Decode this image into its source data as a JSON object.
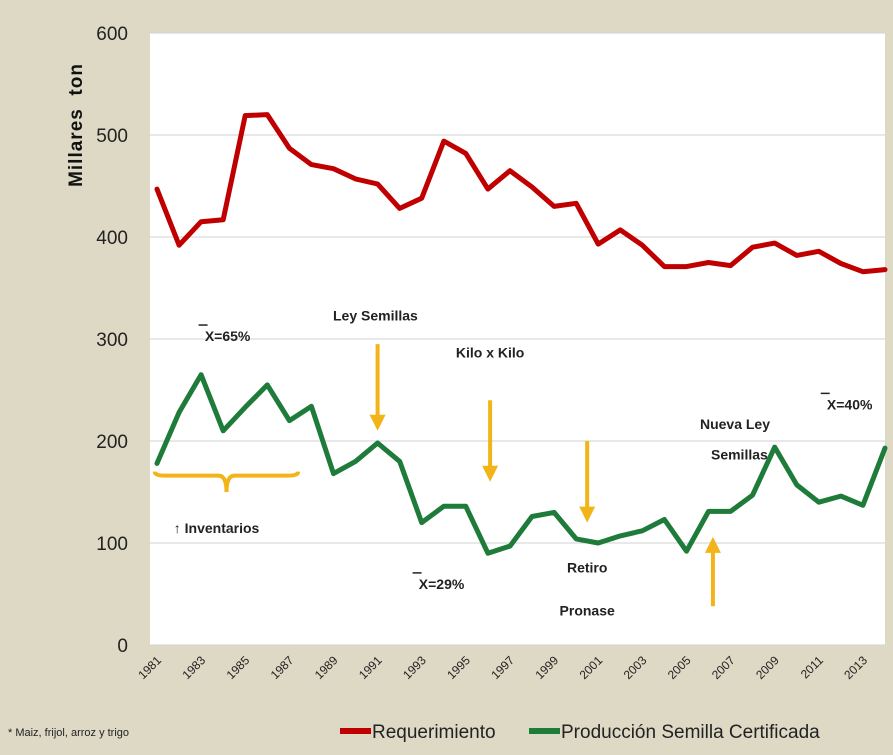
{
  "chart_data": {
    "type": "line",
    "title": "",
    "xlabel": "",
    "ylabel": "Millares  ton",
    "ylim": [
      0,
      600
    ],
    "yticks": [
      0,
      100,
      200,
      300,
      400,
      500,
      600
    ],
    "grid": true,
    "legend_placement": "bottom",
    "x": [
      1981,
      1982,
      1983,
      1984,
      1985,
      1986,
      1987,
      1988,
      1989,
      1990,
      1991,
      1992,
      1993,
      1994,
      1995,
      1996,
      1997,
      1998,
      1999,
      2000,
      2001,
      2002,
      2003,
      2004,
      2005,
      2006,
      2007,
      2008,
      2009,
      2010,
      2011,
      2012,
      2013,
      2014
    ],
    "xtick_labels": [
      "1981",
      "1983",
      "1985",
      "1987",
      "1989",
      "1991",
      "1993",
      "1995",
      "1997",
      "1999",
      "2001",
      "2003",
      "2005",
      "2007",
      "2009",
      "2011",
      "2013"
    ],
    "series": [
      {
        "name": "Requerimiento",
        "color": "#c00000",
        "values": [
          447,
          392,
          415,
          417,
          519,
          520,
          487,
          471,
          467,
          457,
          452,
          428,
          438,
          494,
          482,
          447,
          465,
          449,
          430,
          433,
          393,
          407,
          392,
          371,
          371,
          375,
          372,
          390,
          394,
          382,
          386,
          374,
          366,
          368
        ]
      },
      {
        "name": "Producción Semilla Certificada",
        "color": "#1e7b3a",
        "values": [
          178,
          228,
          265,
          210,
          233,
          255,
          220,
          234,
          168,
          180,
          198,
          180,
          120,
          136,
          136,
          90,
          97,
          126,
          130,
          104,
          100,
          107,
          112,
          123,
          92,
          131,
          131,
          147,
          194,
          157,
          140,
          146,
          137,
          193
        ]
      }
    ],
    "annotations": [
      {
        "text": "X=65%",
        "x": 1984.2,
        "y": 298
      },
      {
        "text": "Ley Semillas",
        "x": 1990.9,
        "y": 318
      },
      {
        "text": "Kilo x Kilo",
        "x": 1996.1,
        "y": 282
      },
      {
        "text": "X=40%",
        "x": 2012.4,
        "y": 231
      },
      {
        "text": "Nueva Ley",
        "x": 2007.2,
        "y": 212
      },
      {
        "text": "Semillas",
        "x": 2007.4,
        "y": 182
      },
      {
        "text": "↑ Inventarios",
        "x": 1983.7,
        "y": 110
      },
      {
        "text": "X=29%",
        "x": 1993.9,
        "y": 55
      },
      {
        "text": "Retiro",
        "x": 2000.5,
        "y": 71
      },
      {
        "text": "Pronase",
        "x": 2000.5,
        "y": 29
      }
    ],
    "footnote": "* Maiz, frijol, arroz y trigo"
  }
}
